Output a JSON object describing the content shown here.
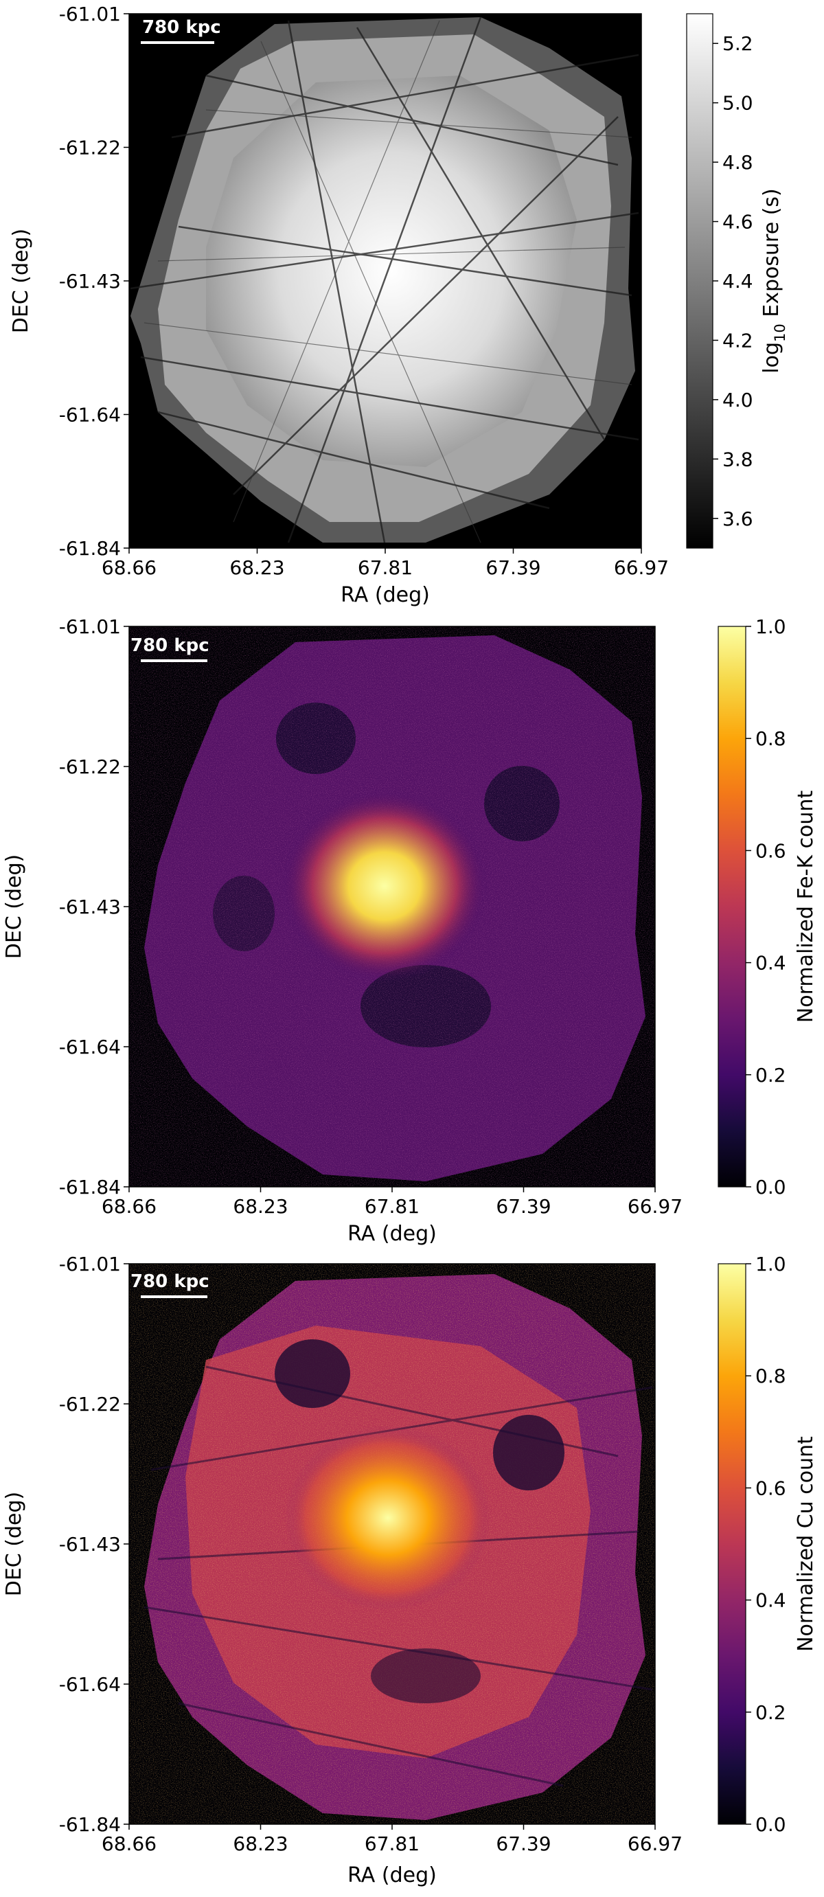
{
  "chart_data": [
    {
      "type": "heatmap",
      "title": "",
      "xlabel": "RA (deg)",
      "ylabel": "DEC (deg)",
      "x_ticks": [
        "68.66",
        "68.23",
        "67.81",
        "67.39",
        "66.97"
      ],
      "y_ticks": [
        "-61.01",
        "-61.22",
        "-61.43",
        "-61.64",
        "-61.84"
      ],
      "xlim": [
        68.66,
        66.97
      ],
      "ylim": [
        -61.84,
        -61.01
      ],
      "scalebar_label": "780 kpc",
      "colormap": "gray",
      "colorbar": {
        "label": "log₁₀ Exposure (s)",
        "label_prefix": "log",
        "label_sub": "10",
        "label_suffix": " Exposure (s)",
        "ticks": [
          "3.6",
          "3.8",
          "4.0",
          "4.2",
          "4.4",
          "4.6",
          "4.8",
          "5.0",
          "5.2"
        ],
        "range": [
          3.5,
          5.3
        ]
      }
    },
    {
      "type": "heatmap",
      "title": "",
      "xlabel": "RA (deg)",
      "ylabel": "DEC (deg)",
      "x_ticks": [
        "68.66",
        "68.23",
        "67.81",
        "67.39",
        "66.97"
      ],
      "y_ticks": [
        "-61.01",
        "-61.22",
        "-61.43",
        "-61.64",
        "-61.84"
      ],
      "xlim": [
        68.66,
        66.97
      ],
      "ylim": [
        -61.84,
        -61.01
      ],
      "scalebar_label": "780 kpc",
      "colormap": "inferno",
      "colorbar": {
        "label": "Normalized Fe-K count",
        "ticks": [
          "0.0",
          "0.2",
          "0.4",
          "0.6",
          "0.8",
          "1.0"
        ],
        "range": [
          0.0,
          1.0
        ]
      }
    },
    {
      "type": "heatmap",
      "title": "",
      "xlabel": "RA (deg)",
      "ylabel": "DEC (deg)",
      "x_ticks": [
        "68.66",
        "68.23",
        "67.81",
        "67.39",
        "66.97"
      ],
      "y_ticks": [
        "-61.01",
        "-61.22",
        "-61.43",
        "-61.64",
        "-61.84"
      ],
      "xlim": [
        68.66,
        66.97
      ],
      "ylim": [
        -61.84,
        -61.01
      ],
      "scalebar_label": "780 kpc",
      "colormap": "inferno",
      "colorbar": {
        "label": "Normalized Cu count",
        "ticks": [
          "0.0",
          "0.2",
          "0.4",
          "0.6",
          "0.8",
          "1.0"
        ],
        "range": [
          0.0,
          1.0
        ]
      }
    }
  ]
}
